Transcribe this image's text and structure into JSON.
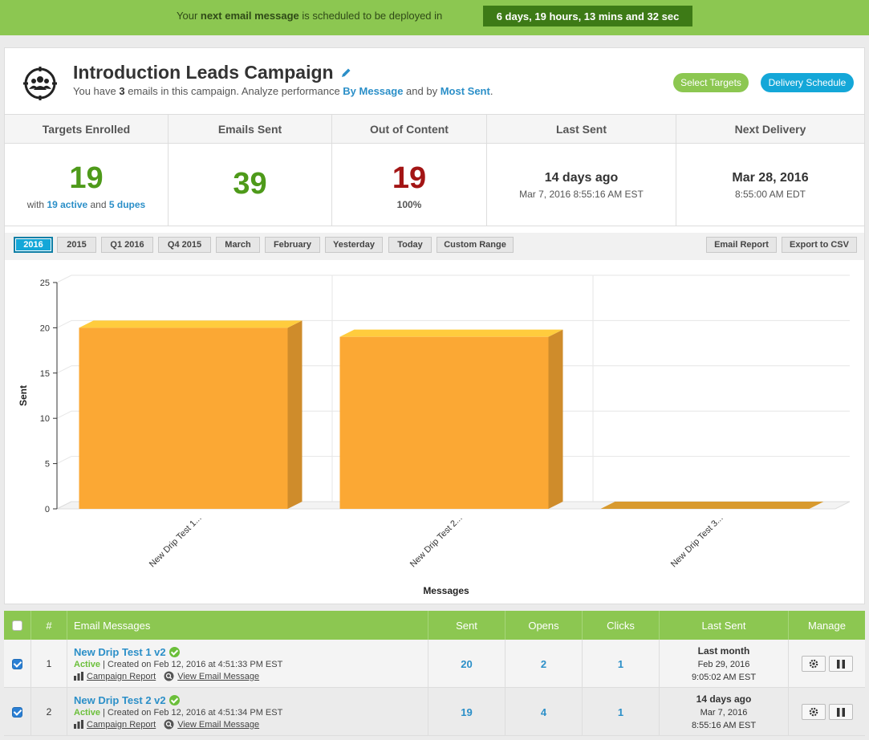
{
  "banner": {
    "prefix": "Your ",
    "bold": "next email message",
    "suffix": " is scheduled to be deployed in",
    "countdown": "6 days, 19 hours, 13 mins and 32 sec"
  },
  "campaign": {
    "title": "Introduction Leads Campaign",
    "sub_prefix": "You have ",
    "sub_count": "3",
    "sub_mid": " emails in this campaign. Analyze performance ",
    "sub_link1": "By Message",
    "sub_and": " and by ",
    "sub_link2": "Most Sent",
    "sub_end": ".",
    "select_targets": "Select Targets",
    "delivery_schedule": "Delivery Schedule"
  },
  "stats": {
    "targets": {
      "label": "Targets Enrolled",
      "value": "19",
      "with": "with ",
      "active": "19 active",
      "and": " and ",
      "dupes": "5 dupes"
    },
    "sent": {
      "label": "Emails Sent",
      "value": "39"
    },
    "content": {
      "label": "Out of Content",
      "value": "19",
      "pct": "100%"
    },
    "last_sent": {
      "label": "Last Sent",
      "rel": "14 days ago",
      "date": "Mar 7, 2016 8:55:16 AM EST"
    },
    "next_delivery": {
      "label": "Next Delivery",
      "date": "Mar 28, 2016",
      "time": "8:55:00 AM EDT"
    }
  },
  "filters": [
    "2016",
    "2015",
    "Q1 2016",
    "Q4 2015",
    "March",
    "February",
    "Yesterday",
    "Today",
    "Custom Range"
  ],
  "filter_active": "2016",
  "actions": {
    "email_report": "Email Report",
    "export_csv": "Export to CSV"
  },
  "chart_data": {
    "type": "bar",
    "categories": [
      "New Drip Test 1...",
      "New Drip Test 2...",
      "New Drip Test 3..."
    ],
    "values": [
      20,
      19,
      0
    ],
    "xlabel": "Messages",
    "ylabel": "Sent",
    "ylim": [
      0,
      25
    ],
    "yticks": [
      0,
      5,
      10,
      15,
      20,
      25
    ],
    "grid": true,
    "color": "#fba834"
  },
  "table": {
    "headers": {
      "num": "#",
      "messages": "Email Messages",
      "sent": "Sent",
      "opens": "Opens",
      "clicks": "Clicks",
      "last_sent": "Last Sent",
      "manage": "Manage"
    },
    "rows": [
      {
        "num": "1",
        "name": "New Drip Test 1 v2",
        "status": "Active",
        "created": " | Created on Feb 12, 2016 at 4:51:33 PM EST",
        "report": "Campaign Report",
        "view": "View Email Message",
        "sent": "20",
        "opens": "2",
        "clicks": "1",
        "last_rel": "Last month",
        "last_date": "Feb 29, 2016",
        "last_time": "9:05:02 AM EST"
      },
      {
        "num": "2",
        "name": "New Drip Test 2 v2",
        "status": "Active",
        "created": " | Created on Feb 12, 2016 at 4:51:34 PM EST",
        "report": "Campaign Report",
        "view": "View Email Message",
        "sent": "19",
        "opens": "4",
        "clicks": "1",
        "last_rel": "14 days ago",
        "last_date": "Mar 7, 2016",
        "last_time": "8:55:16 AM EST"
      }
    ]
  }
}
